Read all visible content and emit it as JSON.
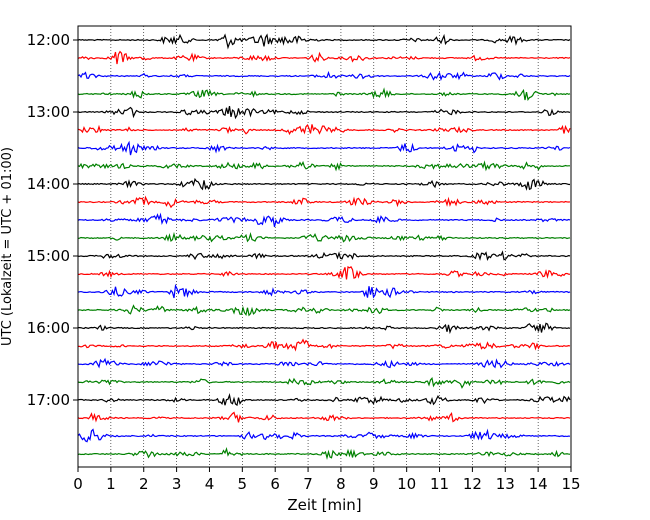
{
  "chart_data": {
    "type": "line",
    "title": "",
    "xlabel": "Zeit  [min]",
    "ylabel": "UTC (Lokalzeit = UTC + 01:00)",
    "xlim": [
      0,
      15
    ],
    "x_ticks": [
      "0",
      "1",
      "2",
      "3",
      "4",
      "5",
      "6",
      "7",
      "8",
      "9",
      "10",
      "11",
      "12",
      "13",
      "14",
      "15"
    ],
    "y_ticks": [
      "12:00",
      "13:00",
      "14:00",
      "15:00",
      "16:00",
      "17:00"
    ],
    "start_time": "12:00",
    "minutes_per_line": 15,
    "line_count": 24,
    "vertical_grid": "dotted, every 1 min",
    "trace_color_cycle": [
      "#000000",
      "#ff0000",
      "#0000ff",
      "#008000"
    ]
  }
}
